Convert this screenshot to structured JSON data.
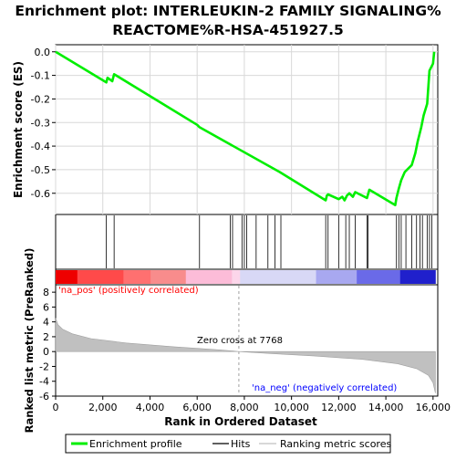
{
  "title_line1": "Enrichment plot: INTERLEUKIN-2 FAMILY SIGNALING%",
  "title_line2": "REACTOME%R-HSA-451927.5",
  "top_ylabel": "Enrichment score (ES)",
  "bottom_ylabel": "Ranked list metric (PreRanked)",
  "xlabel": "Rank in Ordered Dataset",
  "pos_label": "'na_pos' (positively correlated)",
  "neg_label": "'na_neg' (negatively correlated)",
  "zero_cross_label": "Zero cross at 7768",
  "legend": {
    "profile": "Enrichment profile",
    "hits": "Hits",
    "metric": "Ranking metric scores"
  },
  "colors": {
    "profile": "#00ee00",
    "hits": "#000000",
    "metric": "#c0c0c0",
    "pos_text": "#ff0000",
    "neg_text": "#0000ff"
  },
  "chart_data": {
    "type": "line",
    "x_range": [
      0,
      16200
    ],
    "x_ticks": [
      0,
      2000,
      4000,
      6000,
      8000,
      10000,
      12000,
      14000,
      16000
    ],
    "x_tick_labels": [
      "0",
      "2,000",
      "4,000",
      "6,000",
      "8,000",
      "10,000",
      "12,000",
      "14,000",
      "16,000"
    ],
    "es": {
      "ylim": [
        -0.69,
        0.03
      ],
      "y_ticks": [
        0.0,
        -0.1,
        -0.2,
        -0.3,
        -0.4,
        -0.5,
        -0.6
      ],
      "y_tick_labels": [
        "0.0",
        "-0.1",
        "-0.2",
        "-0.3",
        "-0.4",
        "-0.5",
        "-0.6"
      ],
      "points": [
        [
          0,
          0.0
        ],
        [
          2150,
          -0.13
        ],
        [
          2200,
          -0.11
        ],
        [
          2400,
          -0.125
        ],
        [
          2480,
          -0.095
        ],
        [
          6000,
          -0.31
        ],
        [
          6100,
          -0.32
        ],
        [
          9500,
          -0.51
        ],
        [
          11450,
          -0.63
        ],
        [
          11500,
          -0.61
        ],
        [
          11550,
          -0.605
        ],
        [
          12000,
          -0.625
        ],
        [
          12150,
          -0.615
        ],
        [
          12250,
          -0.63
        ],
        [
          12350,
          -0.61
        ],
        [
          12450,
          -0.6
        ],
        [
          12600,
          -0.615
        ],
        [
          12700,
          -0.595
        ],
        [
          13200,
          -0.62
        ],
        [
          13300,
          -0.585
        ],
        [
          14400,
          -0.65
        ],
        [
          14450,
          -0.62
        ],
        [
          14550,
          -0.58
        ],
        [
          14650,
          -0.545
        ],
        [
          14800,
          -0.51
        ],
        [
          15100,
          -0.48
        ],
        [
          15250,
          -0.43
        ],
        [
          15350,
          -0.38
        ],
        [
          15500,
          -0.32
        ],
        [
          15600,
          -0.27
        ],
        [
          15750,
          -0.22
        ],
        [
          15850,
          -0.08
        ],
        [
          16000,
          -0.05
        ],
        [
          16050,
          0.0
        ]
      ]
    },
    "hits": [
      2150,
      2480,
      6100,
      7400,
      7500,
      7900,
      8000,
      8100,
      8500,
      9000,
      9300,
      9550,
      11450,
      11550,
      12000,
      12300,
      12450,
      12700,
      13200,
      13250,
      14450,
      14550,
      14650,
      14850,
      15100,
      15300,
      15450,
      15550,
      15750,
      15850,
      15950
    ],
    "metric": {
      "ylim": [
        -6,
        9
      ],
      "y_ticks": [
        8,
        6,
        4,
        2,
        0,
        -2,
        -4,
        -6
      ],
      "y_tick_labels": [
        "8",
        "6",
        "4",
        "2",
        "0",
        "-2",
        "-4",
        "-6"
      ],
      "zero_cross": 7768,
      "points": [
        [
          0,
          4.5
        ],
        [
          100,
          3.6
        ],
        [
          300,
          3.0
        ],
        [
          700,
          2.4
        ],
        [
          1500,
          1.75
        ],
        [
          3000,
          1.15
        ],
        [
          5000,
          0.65
        ],
        [
          7000,
          0.22
        ],
        [
          7768,
          0.0
        ],
        [
          9000,
          -0.25
        ],
        [
          11000,
          -0.6
        ],
        [
          13000,
          -1.05
        ],
        [
          14500,
          -1.65
        ],
        [
          15300,
          -2.3
        ],
        [
          15800,
          -3.2
        ],
        [
          16000,
          -4.2
        ],
        [
          16100,
          -5.6
        ]
      ]
    }
  }
}
